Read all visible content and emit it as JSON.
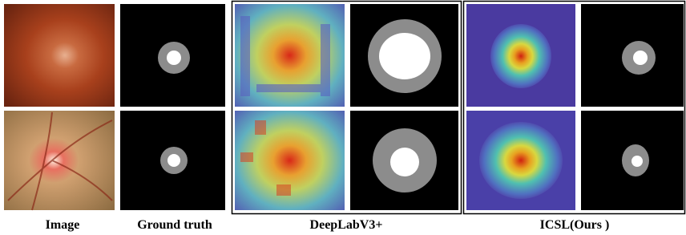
{
  "captions": [
    "Image",
    "Ground truth",
    "DeepLabV3+",
    "ICSL(Ours )"
  ]
}
